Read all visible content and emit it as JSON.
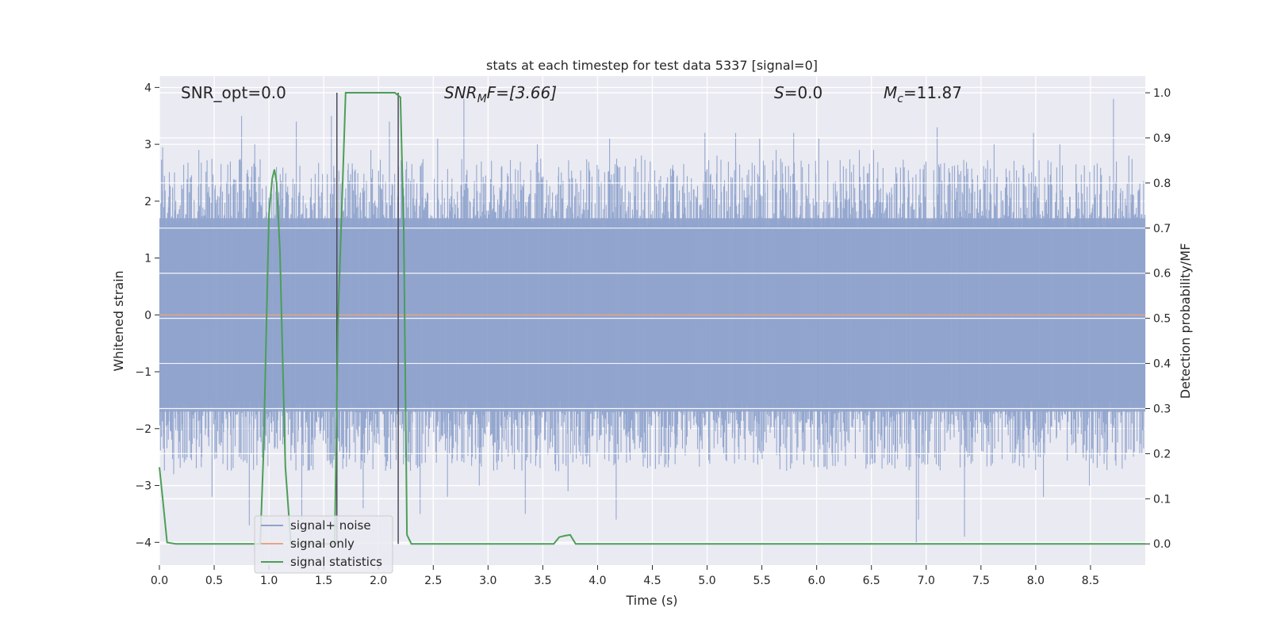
{
  "chart_data": {
    "type": "line",
    "title": "stats at each timestep for test data 5337 [signal=0]",
    "xlabel": "Time (s)",
    "ylabel": "Whitened strain",
    "y2label": "Detection probability/MF",
    "xlim": [
      0,
      9.0
    ],
    "ylim": [
      -4.4,
      4.2
    ],
    "y2lim": [
      -0.047,
      1.037
    ],
    "x_ticks": [
      "0.0",
      "0.5",
      "1.0",
      "1.5",
      "2.0",
      "2.5",
      "3.0",
      "3.5",
      "4.0",
      "4.5",
      "5.0",
      "5.5",
      "6.0",
      "6.5",
      "7.0",
      "7.5",
      "8.0",
      "8.5"
    ],
    "x_tick_values": [
      0,
      0.5,
      1.0,
      1.5,
      2.0,
      2.5,
      3.0,
      3.5,
      4.0,
      4.5,
      5.0,
      5.5,
      6.0,
      6.5,
      7.0,
      7.5,
      8.0,
      8.5
    ],
    "y_ticks": [
      "4",
      "3",
      "2",
      "1",
      "0",
      "−1",
      "−2",
      "−3",
      "−4"
    ],
    "y_tick_values": [
      4,
      3,
      2,
      1,
      0,
      -1,
      -2,
      -3,
      -4
    ],
    "y2_ticks": [
      "1.0",
      "0.9",
      "0.8",
      "0.7",
      "0.6",
      "0.5",
      "0.4",
      "0.3",
      "0.2",
      "0.1",
      "0.0"
    ],
    "y2_tick_values": [
      1.0,
      0.9,
      0.8,
      0.7,
      0.6,
      0.5,
      0.4,
      0.3,
      0.2,
      0.1,
      0.0
    ],
    "grid": true,
    "legend_position": "bottom-left",
    "annotations": {
      "snr_opt": "SNR_opt=0.0",
      "snr_mf_sym": "SNR",
      "snr_mf_sub": "M",
      "snr_mf_rest": "F=[3.66]",
      "s_sym": "S",
      "s_rest": "=0.0",
      "mc_sym": "M",
      "mc_sub": "c",
      "mc_rest": "=11.87"
    },
    "vlines_x": [
      1.62,
      2.18
    ],
    "series": [
      {
        "name": "signal+ noise",
        "color": "#8fa3cc",
        "axis": "left",
        "kind": "noise",
        "core_amplitude": 1.7,
        "peaks": [
          [
            0.03,
            2.95
          ],
          [
            0.13,
            -2.8
          ],
          [
            0.36,
            2.9
          ],
          [
            0.48,
            -3.2
          ],
          [
            0.75,
            3.5
          ],
          [
            0.82,
            -3.7
          ],
          [
            0.87,
            3.0
          ],
          [
            1.25,
            3.4
          ],
          [
            1.3,
            -3.6
          ],
          [
            1.57,
            3.5
          ],
          [
            1.62,
            -3.4
          ],
          [
            1.86,
            -3.4
          ],
          [
            1.93,
            2.9
          ],
          [
            2.1,
            3.4
          ],
          [
            2.38,
            -3.5
          ],
          [
            2.54,
            3.1
          ],
          [
            2.63,
            -3.2
          ],
          [
            2.78,
            3.8
          ],
          [
            2.92,
            -3.0
          ],
          [
            3.34,
            -3.5
          ],
          [
            3.45,
            3.0
          ],
          [
            3.73,
            -3.1
          ],
          [
            4.11,
            3.1
          ],
          [
            4.17,
            -3.6
          ],
          [
            4.4,
            2.8
          ],
          [
            4.98,
            3.2
          ],
          [
            5.09,
            2.8
          ],
          [
            5.26,
            3.2
          ],
          [
            5.48,
            3.1
          ],
          [
            5.63,
            2.9
          ],
          [
            5.79,
            3.2
          ],
          [
            6.02,
            3.1
          ],
          [
            6.39,
            2.9
          ],
          [
            6.52,
            2.9
          ],
          [
            6.91,
            -4.0
          ],
          [
            6.93,
            -3.6
          ],
          [
            7.1,
            3.3
          ],
          [
            7.35,
            -3.9
          ],
          [
            7.62,
            3.0
          ],
          [
            7.98,
            3.2
          ],
          [
            8.07,
            -3.2
          ],
          [
            8.22,
            3.0
          ],
          [
            8.49,
            -3.0
          ],
          [
            8.71,
            3.8
          ],
          [
            8.85,
            2.8
          ]
        ]
      },
      {
        "name": "signal only",
        "color": "#e8a583",
        "axis": "left",
        "x": [
          0,
          9.0
        ],
        "y": [
          0,
          0
        ]
      },
      {
        "name": "signal statistics",
        "color": "#4c9e57",
        "axis": "right",
        "x": [
          0,
          0.03,
          0.07,
          0.15,
          0.92,
          0.95,
          1.0,
          1.03,
          1.05,
          1.07,
          1.1,
          1.15,
          1.2,
          1.6,
          1.63,
          1.67,
          1.7,
          1.75,
          2.15,
          2.2,
          2.23,
          2.26,
          2.3,
          3.6,
          3.65,
          3.7,
          3.75,
          3.8,
          9.0
        ],
        "y": [
          0.17,
          0.1,
          0.003,
          0.0,
          0.0,
          0.2,
          0.73,
          0.81,
          0.83,
          0.8,
          0.65,
          0.17,
          0.0,
          0.0,
          0.49,
          0.78,
          1.0,
          1.0,
          1.0,
          0.99,
          0.7,
          0.02,
          0.0,
          0.0,
          0.015,
          0.018,
          0.02,
          0.0,
          0.0
        ]
      }
    ]
  }
}
